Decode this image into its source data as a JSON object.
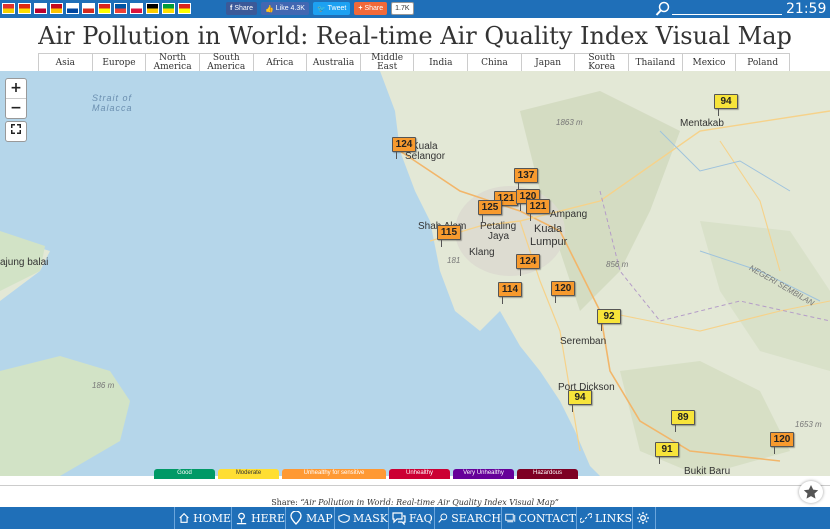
{
  "topbar": {
    "flags": [
      {
        "name": "flag-1",
        "colors": [
          "#e0322c",
          "#f4d000"
        ]
      },
      {
        "name": "flag-2",
        "colors": [
          "#de2910",
          "#ffde00"
        ]
      },
      {
        "name": "flag-3",
        "colors": [
          "#ffffff",
          "#bc002d"
        ]
      },
      {
        "name": "flag-4",
        "colors": [
          "#c60b1e",
          "#ffc400"
        ]
      },
      {
        "name": "flag-5",
        "colors": [
          "#ffffff",
          "#0047a0"
        ]
      },
      {
        "name": "flag-6",
        "colors": [
          "#ffffff",
          "#d52b1e"
        ]
      },
      {
        "name": "flag-7",
        "colors": [
          "#da251d",
          "#ffff00"
        ]
      },
      {
        "name": "flag-8",
        "colors": [
          "#0055a4",
          "#ef4135"
        ]
      },
      {
        "name": "flag-9",
        "colors": [
          "#ffffff",
          "#dc143c"
        ]
      },
      {
        "name": "flag-10",
        "colors": [
          "#000000",
          "#ffce00"
        ]
      },
      {
        "name": "flag-11",
        "colors": [
          "#009c3b",
          "#ffdf00"
        ]
      },
      {
        "name": "flag-12",
        "colors": [
          "#da251d",
          "#ffff00"
        ]
      }
    ],
    "share_buttons": [
      {
        "icon": "f",
        "label": "Share",
        "color": "#3b5998"
      },
      {
        "icon": "👍",
        "label": "Like 4.3K",
        "color": "#4267b2"
      },
      {
        "icon": "🐦",
        "label": "Tweet",
        "color": "#1da1f2"
      },
      {
        "icon": "+",
        "label": "Share",
        "color": "#f1693a"
      }
    ],
    "share_count": "1.7K",
    "clock": "21:59"
  },
  "title": "Air Pollution in World: Real-time Air Quality Index Visual Map",
  "regions": [
    {
      "label": "Asia"
    },
    {
      "label": "Europe"
    },
    {
      "label": "North America"
    },
    {
      "label": "South America"
    },
    {
      "label": "Africa"
    },
    {
      "label": "Australia"
    },
    {
      "label": "Middle East"
    },
    {
      "label": "India"
    },
    {
      "label": "China"
    },
    {
      "label": "Japan"
    },
    {
      "label": "South Korea"
    },
    {
      "label": "Thailand"
    },
    {
      "label": "Mexico"
    },
    {
      "label": "Poland"
    }
  ],
  "map": {
    "labels": [
      {
        "text": "Strait of",
        "cls": "sea"
      },
      {
        "text": "Malacca",
        "cls": "sea"
      },
      {
        "text": "Kuala",
        "cls": "city"
      },
      {
        "text": "Selangor",
        "cls": "city"
      },
      {
        "text": "Mentakab",
        "cls": "city"
      },
      {
        "text": "Shah Alam",
        "cls": "city"
      },
      {
        "text": "Petaling",
        "cls": "city"
      },
      {
        "text": "Jaya",
        "cls": "city"
      },
      {
        "text": "Ampang",
        "cls": "city"
      },
      {
        "text": "Kuala",
        "cls": "big"
      },
      {
        "text": "Lumpur",
        "cls": "big"
      },
      {
        "text": "Klang",
        "cls": "city"
      },
      {
        "text": "Seremban",
        "cls": "city"
      },
      {
        "text": "Port Dickson",
        "cls": "city"
      },
      {
        "text": "Bukit Baru",
        "cls": "city"
      },
      {
        "text": "ajung balai",
        "cls": "city"
      },
      {
        "text": "NEGERI SEMBILAN",
        "cls": "elev"
      },
      {
        "text": "186 m",
        "cls": "elev"
      },
      {
        "text": "1863 m",
        "cls": "elev"
      },
      {
        "text": "856 m",
        "cls": "elev"
      },
      {
        "text": "1653 m",
        "cls": "elev"
      },
      {
        "text": "181",
        "cls": "elev"
      }
    ],
    "markers": [
      {
        "value": "94",
        "color": "#f7e43a"
      },
      {
        "value": "124",
        "color": "#f79a2e"
      },
      {
        "value": "137",
        "color": "#f79a2e"
      },
      {
        "value": "121",
        "color": "#f79a2e"
      },
      {
        "value": "120",
        "color": "#f79a2e"
      },
      {
        "value": "125",
        "color": "#f79a2e"
      },
      {
        "value": "121",
        "color": "#f79a2e"
      },
      {
        "value": "115",
        "color": "#f79a2e"
      },
      {
        "value": "124",
        "color": "#f79a2e"
      },
      {
        "value": "114",
        "color": "#f79a2e"
      },
      {
        "value": "120",
        "color": "#f79a2e"
      },
      {
        "value": "92",
        "color": "#f7e43a"
      },
      {
        "value": "94",
        "color": "#f7e43a"
      },
      {
        "value": "89",
        "color": "#f7e43a"
      },
      {
        "value": "91",
        "color": "#f7e43a"
      },
      {
        "value": "120",
        "color": "#f79a2e"
      }
    ],
    "zoom_in": "+",
    "zoom_out": "−"
  },
  "legend": [
    {
      "label": "Good",
      "color": "#009966"
    },
    {
      "label": "Moderate",
      "color": "#ffde33"
    },
    {
      "label": "Unhealthy for sensitive",
      "color": "#ff9933"
    },
    {
      "label": "Unhealthy",
      "color": "#cc0033"
    },
    {
      "label": "Very Unhealthy",
      "color": "#660099"
    },
    {
      "label": "Hazardous",
      "color": "#7e0023"
    }
  ],
  "share_line": {
    "prefix": "Share: ",
    "quote": "“Air Pollution in World: Real-time Air Quality Index Visual Map”"
  },
  "bottom_nav": [
    {
      "label": "HOME",
      "icon": "home-icon"
    },
    {
      "label": "HERE",
      "icon": "location-pin-icon"
    },
    {
      "label": "MAP",
      "icon": "map-pin-icon"
    },
    {
      "label": "MASK",
      "icon": "mask-icon"
    },
    {
      "label": "FAQ",
      "icon": "faq-icon"
    },
    {
      "label": "SEARCH",
      "icon": "search-icon"
    },
    {
      "label": "CONTACT",
      "icon": "contact-icon"
    },
    {
      "label": "LINKS",
      "icon": "link-icon"
    },
    {
      "label": "",
      "icon": "gear-icon"
    }
  ]
}
